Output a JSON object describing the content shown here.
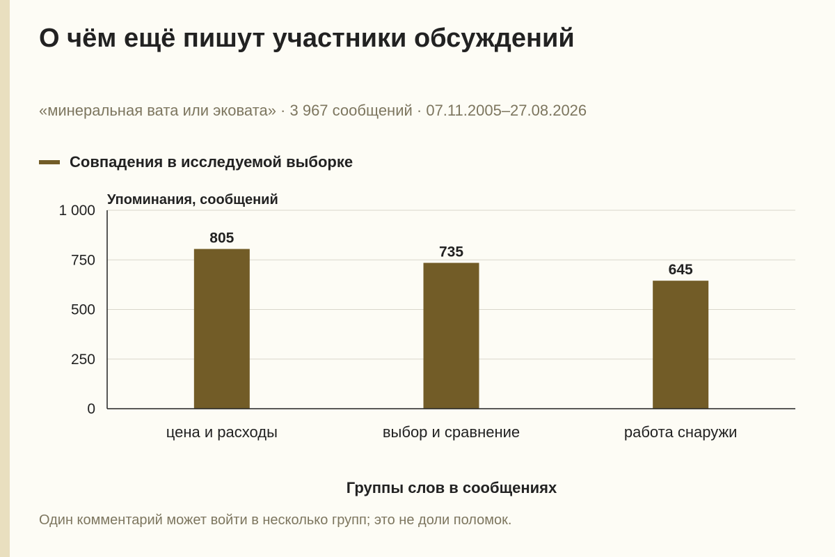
{
  "header": {
    "title": "О чём ещё пишут участники обсуждений",
    "subtitle": "«минеральная вата или эковата» · 3 967 сообщений · 07.11.2005–27.08.2026"
  },
  "footnote": "Один комментарий может войти в несколько групп; это не доли поломок.",
  "colors": {
    "bar": "#725c27",
    "grid": "#d9d6cb",
    "axis": "#222222",
    "stripe": "#e9dfbf",
    "background": "#fdfcf5"
  },
  "chart_data": {
    "type": "bar",
    "ylabel": "Упоминания, сообщений",
    "xlabel": "Группы слов в сообщениях",
    "ylim": [
      0,
      1000
    ],
    "yticks": [
      0,
      250,
      500,
      750,
      1000
    ],
    "ytick_labels": [
      "0",
      "250",
      "500",
      "750",
      "1 000"
    ],
    "categories": [
      "цена и расходы",
      "выбор и сравнение",
      "работа снаружи"
    ],
    "series": [
      {
        "name": "Совпадения в исследуемой выборке",
        "values": [
          805,
          735,
          645
        ]
      }
    ],
    "grid": true,
    "legend": "top-left",
    "data_labels": true
  }
}
